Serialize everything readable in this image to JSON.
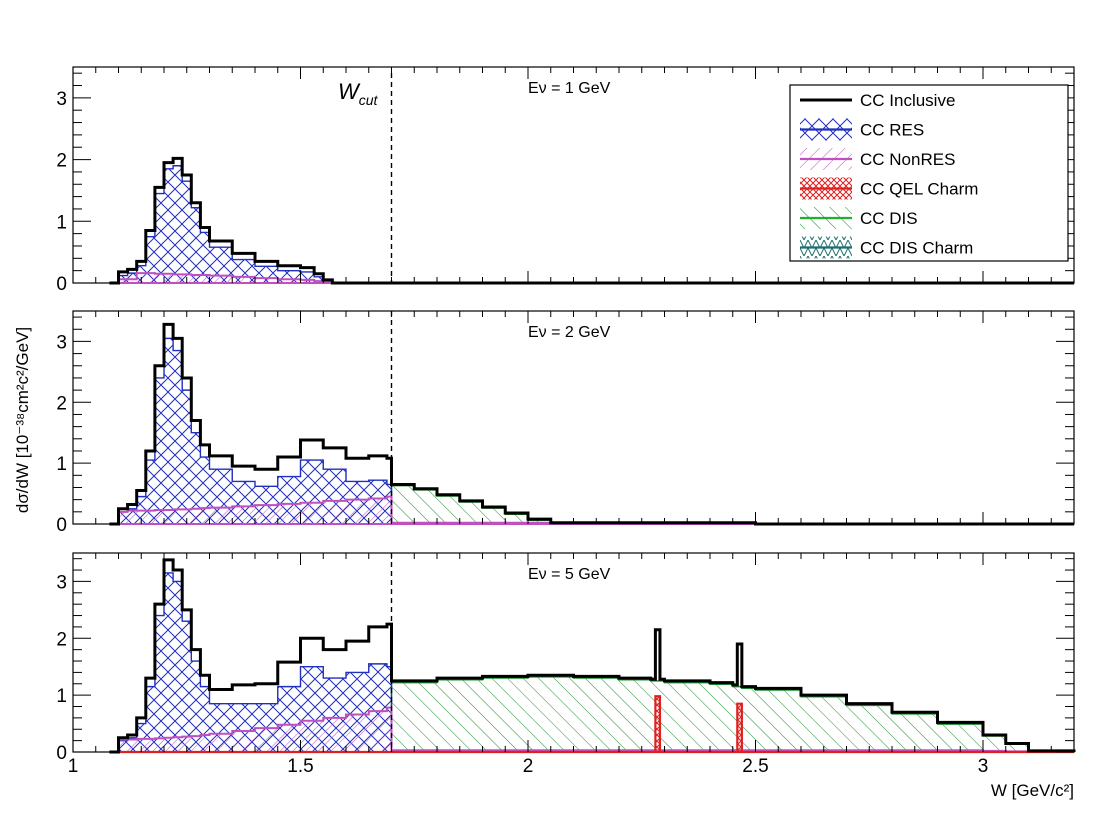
{
  "figure": {
    "ylabel": "dσ/dW [10⁻³⁸cm²c²/GeV]",
    "xlabel": "W [GeV/c²]",
    "wcut_label": "W",
    "wcut_sub": "cut",
    "wcut_value": 1.7
  },
  "legend": [
    {
      "label": "CC Inclusive",
      "key": "inclusive",
      "color": "#000000"
    },
    {
      "label": "CC RES",
      "key": "res",
      "color": "#1f2fbf"
    },
    {
      "label": "CC NonRES",
      "key": "nonres",
      "color": "#c050c0"
    },
    {
      "label": "CC QEL Charm",
      "key": "qelcharm",
      "color": "#e02020"
    },
    {
      "label": "CC DIS",
      "key": "dis",
      "color": "#20b030"
    },
    {
      "label": "CC DIS Charm",
      "key": "dischar",
      "color": "#1f6f6f"
    }
  ],
  "colors": {
    "inclusive": "#000000",
    "res": "#1f2fbf",
    "nonres": "#c050c0",
    "qelcharm": "#e02020",
    "dis": "#1f8f2f",
    "dischar": "#1f6f6f"
  },
  "chart_data": [
    {
      "type": "area",
      "label": "Eν = 1 GeV",
      "xlim": [
        1.0,
        3.2
      ],
      "ylim": [
        0,
        3.5
      ],
      "xticks": [
        "1",
        "1.5",
        "2",
        "2.5",
        "3"
      ],
      "yticks": [
        "0",
        "1",
        "2",
        "3"
      ],
      "x": [
        1.08,
        1.1,
        1.12,
        1.14,
        1.16,
        1.18,
        1.2,
        1.22,
        1.24,
        1.26,
        1.28,
        1.3,
        1.35,
        1.4,
        1.45,
        1.5,
        1.53,
        1.55,
        1.57,
        1.7,
        2.0,
        2.5,
        3.2
      ],
      "series": [
        {
          "name": "CC Inclusive",
          "values": [
            0.0,
            0.18,
            0.22,
            0.35,
            0.85,
            1.55,
            1.95,
            2.02,
            1.75,
            1.3,
            0.9,
            0.68,
            0.48,
            0.35,
            0.28,
            0.25,
            0.15,
            0.05,
            0.0,
            0.0,
            0.0,
            0.0,
            0.0
          ]
        },
        {
          "name": "CC RES",
          "values": [
            0.0,
            0.12,
            0.16,
            0.28,
            0.75,
            1.45,
            1.85,
            1.9,
            1.65,
            1.22,
            0.82,
            0.58,
            0.38,
            0.27,
            0.2,
            0.18,
            0.1,
            0.03,
            0.0,
            0.0,
            0.0,
            0.0,
            0.0
          ]
        },
        {
          "name": "CC NonRES",
          "values": [
            0.0,
            0.06,
            0.06,
            0.16,
            0.16,
            0.15,
            0.15,
            0.14,
            0.14,
            0.13,
            0.13,
            0.12,
            0.1,
            0.08,
            0.06,
            0.05,
            0.03,
            0.01,
            0.0,
            0.0,
            0.0,
            0.0,
            0.0
          ]
        },
        {
          "name": "CC DIS",
          "values": [
            0,
            0,
            0,
            0,
            0,
            0,
            0,
            0,
            0,
            0,
            0,
            0,
            0,
            0,
            0,
            0,
            0,
            0,
            0,
            0,
            0,
            0,
            0
          ]
        }
      ]
    },
    {
      "type": "area",
      "label": "Eν = 2 GeV",
      "xlim": [
        1.0,
        3.2
      ],
      "ylim": [
        0,
        3.5
      ],
      "xticks": [
        "1",
        "1.5",
        "2",
        "2.5",
        "3"
      ],
      "yticks": [
        "0",
        "1",
        "2",
        "3"
      ],
      "x": [
        1.08,
        1.1,
        1.12,
        1.14,
        1.16,
        1.18,
        1.2,
        1.22,
        1.24,
        1.26,
        1.28,
        1.3,
        1.35,
        1.4,
        1.45,
        1.5,
        1.55,
        1.6,
        1.65,
        1.69,
        1.7,
        1.75,
        1.8,
        1.85,
        1.9,
        1.95,
        2.0,
        2.05,
        2.5,
        3.2
      ],
      "series": [
        {
          "name": "CC Inclusive",
          "values": [
            0.0,
            0.25,
            0.32,
            0.55,
            1.2,
            2.6,
            3.28,
            3.05,
            2.4,
            1.7,
            1.3,
            1.12,
            0.95,
            0.9,
            1.1,
            1.38,
            1.25,
            1.08,
            1.12,
            1.08,
            0.65,
            0.58,
            0.48,
            0.38,
            0.28,
            0.18,
            0.08,
            0.02,
            0.0,
            0.0
          ]
        },
        {
          "name": "CC RES",
          "values": [
            0.0,
            0.2,
            0.25,
            0.45,
            1.05,
            2.4,
            3.05,
            2.85,
            2.2,
            1.5,
            1.1,
            0.9,
            0.7,
            0.62,
            0.78,
            1.05,
            0.9,
            0.7,
            0.72,
            0.65,
            0.0,
            0.0,
            0.0,
            0.0,
            0.0,
            0.0,
            0.0,
            0.0,
            0.0,
            0.0
          ]
        },
        {
          "name": "CC NonRES",
          "values": [
            0.0,
            0.2,
            0.22,
            0.22,
            0.22,
            0.23,
            0.23,
            0.24,
            0.24,
            0.25,
            0.26,
            0.27,
            0.29,
            0.31,
            0.33,
            0.35,
            0.38,
            0.4,
            0.42,
            0.45,
            0.02,
            0.02,
            0.02,
            0.02,
            0.02,
            0.02,
            0.02,
            0.01,
            0.0,
            0.0
          ]
        },
        {
          "name": "CC DIS",
          "values": [
            0,
            0,
            0,
            0,
            0,
            0,
            0,
            0,
            0,
            0,
            0,
            0,
            0,
            0,
            0,
            0,
            0,
            0,
            0,
            0,
            0.63,
            0.56,
            0.46,
            0.36,
            0.26,
            0.16,
            0.06,
            0.01,
            0.0,
            0.0
          ]
        }
      ]
    },
    {
      "type": "area",
      "label": "Eν = 5 GeV",
      "xlim": [
        1.0,
        3.2
      ],
      "ylim": [
        0,
        3.5
      ],
      "xticks": [
        "1",
        "1.5",
        "2",
        "2.5",
        "3"
      ],
      "yticks": [
        "0",
        "1",
        "2",
        "3"
      ],
      "x": [
        1.08,
        1.1,
        1.12,
        1.14,
        1.16,
        1.18,
        1.2,
        1.22,
        1.24,
        1.26,
        1.28,
        1.3,
        1.35,
        1.4,
        1.45,
        1.5,
        1.55,
        1.6,
        1.65,
        1.69,
        1.7,
        1.8,
        1.9,
        2.0,
        2.1,
        2.2,
        2.27,
        2.28,
        2.29,
        2.3,
        2.4,
        2.45,
        2.46,
        2.47,
        2.5,
        2.6,
        2.7,
        2.8,
        2.9,
        3.0,
        3.05,
        3.1,
        3.2
      ],
      "series": [
        {
          "name": "CC Inclusive",
          "values": [
            0.0,
            0.25,
            0.3,
            0.6,
            1.3,
            2.6,
            3.38,
            3.2,
            2.5,
            1.8,
            1.35,
            1.1,
            1.18,
            1.2,
            1.58,
            2.0,
            1.8,
            1.95,
            2.2,
            2.25,
            1.25,
            1.3,
            1.33,
            1.35,
            1.33,
            1.3,
            1.28,
            2.15,
            1.28,
            1.25,
            1.22,
            1.18,
            1.9,
            1.15,
            1.12,
            1.0,
            0.85,
            0.7,
            0.52,
            0.3,
            0.15,
            0.02,
            0.0
          ]
        },
        {
          "name": "CC RES",
          "values": [
            0.0,
            0.2,
            0.25,
            0.5,
            1.15,
            2.4,
            3.15,
            3.0,
            2.3,
            1.6,
            1.15,
            0.85,
            0.85,
            0.85,
            1.15,
            1.5,
            1.3,
            1.4,
            1.55,
            1.5,
            0.0,
            0.0,
            0.0,
            0.0,
            0.0,
            0.0,
            0.0,
            0.0,
            0.0,
            0.0,
            0.0,
            0.0,
            0.0,
            0.0,
            0.0,
            0.0,
            0.0,
            0.0,
            0.0,
            0.0,
            0.0,
            0.0,
            0.0
          ]
        },
        {
          "name": "CC NonRES",
          "values": [
            0.0,
            0.22,
            0.22,
            0.23,
            0.23,
            0.24,
            0.25,
            0.26,
            0.27,
            0.28,
            0.3,
            0.32,
            0.37,
            0.42,
            0.48,
            0.55,
            0.6,
            0.66,
            0.72,
            0.78,
            0.03,
            0.03,
            0.03,
            0.03,
            0.03,
            0.03,
            0.03,
            0.03,
            0.03,
            0.03,
            0.03,
            0.03,
            0.03,
            0.03,
            0.03,
            0.03,
            0.03,
            0.03,
            0.03,
            0.02,
            0.01,
            0.0,
            0.0
          ]
        },
        {
          "name": "CC DIS",
          "values": [
            0,
            0,
            0,
            0,
            0,
            0,
            0,
            0,
            0,
            0,
            0,
            0,
            0,
            0,
            0,
            0,
            0,
            0,
            0,
            0,
            1.22,
            1.27,
            1.3,
            1.32,
            1.3,
            1.27,
            1.25,
            1.25,
            1.25,
            1.22,
            1.19,
            1.15,
            1.15,
            1.12,
            1.09,
            0.97,
            0.82,
            0.67,
            0.49,
            0.28,
            0.14,
            0.02,
            0.0
          ]
        },
        {
          "name": "CC QEL Charm",
          "values": [
            0,
            0,
            0,
            0,
            0,
            0,
            0,
            0,
            0,
            0,
            0,
            0,
            0,
            0,
            0,
            0,
            0,
            0,
            0,
            0,
            0,
            0,
            0,
            0,
            0,
            0,
            0,
            0.98,
            0,
            0,
            0,
            0,
            0.85,
            0,
            0,
            0,
            0,
            0,
            0,
            0,
            0,
            0,
            0
          ]
        }
      ]
    }
  ]
}
